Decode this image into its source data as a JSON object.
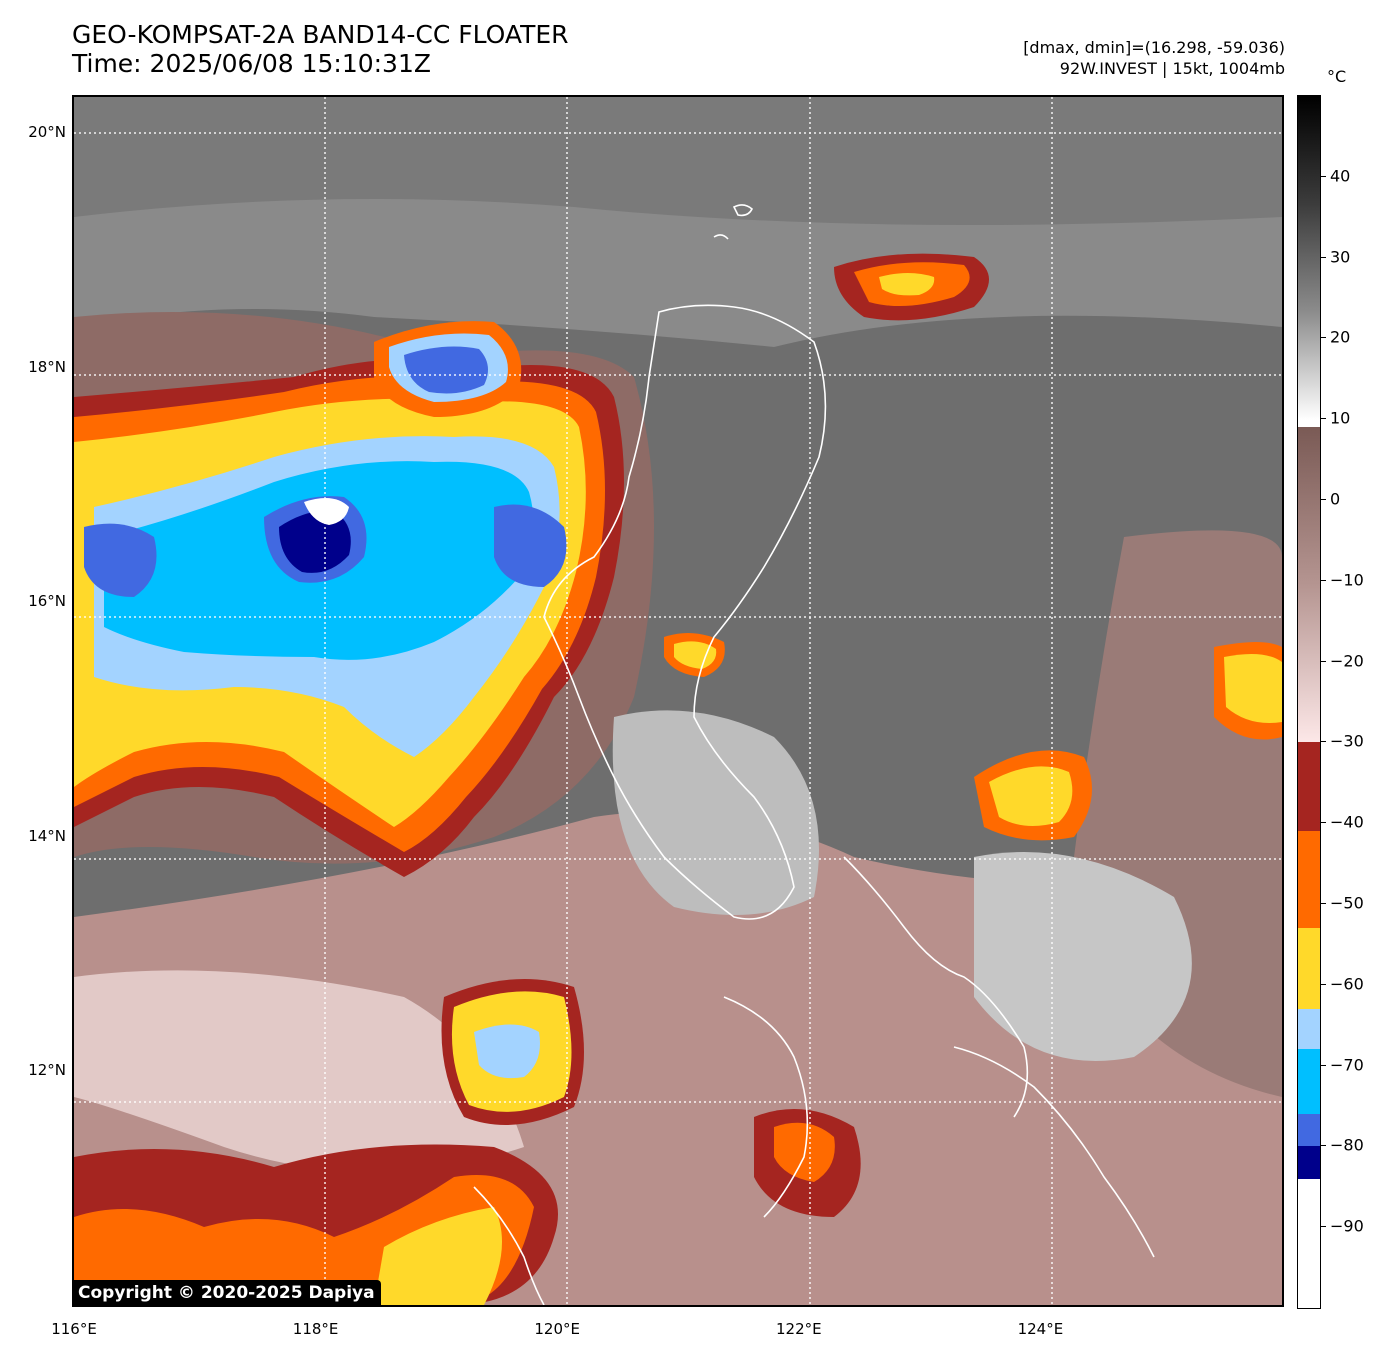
{
  "header": {
    "title_line1": "GEO-KOMPSAT-2A BAND14-CC FLOATER",
    "title_line2": "Time: 2025/06/08 15:10:31Z",
    "meta_line1": "[dmax, dmin]=(16.298, -59.036)",
    "meta_line2": "92W.INVEST | 15kt, 1004mb"
  },
  "map": {
    "lon_range": [
      116.0,
      126.0
    ],
    "lat_range": [
      10.0,
      20.3
    ],
    "lat_labels": [
      "20°N",
      "18°N",
      "16°N",
      "14°N",
      "12°N"
    ],
    "lat_values": [
      20,
      18,
      16,
      14,
      12
    ],
    "lon_labels": [
      "116°E",
      "118°E",
      "120°E",
      "122°E",
      "124°E"
    ],
    "lon_values": [
      116,
      118,
      120,
      122,
      124
    ],
    "grid": "dotted white"
  },
  "colorbar": {
    "unit": "°C",
    "tick_labels": [
      "40",
      "30",
      "20",
      "10",
      "0",
      "−10",
      "−20",
      "−30",
      "−40",
      "−50",
      "−60",
      "−70",
      "−80",
      "−90"
    ],
    "tick_values": [
      40,
      30,
      20,
      10,
      0,
      -10,
      -20,
      -30,
      -40,
      -50,
      -60,
      -70,
      -80,
      -90
    ],
    "range": [
      -100,
      50
    ],
    "bands": [
      {
        "from": 50,
        "to": 10,
        "gradient": [
          "#000000",
          "#3c3c3c",
          "#8c8c8c",
          "#ffffff"
        ]
      },
      {
        "from": 9,
        "to": -30,
        "gradient": [
          "#7a5a55",
          "#b59591",
          "#fde8e8"
        ]
      },
      {
        "from": -30,
        "to": -41,
        "color": "#a52520"
      },
      {
        "from": -41,
        "to": -53,
        "color": "#ff6a00"
      },
      {
        "from": -53,
        "to": -63,
        "color": "#ffd92a"
      },
      {
        "from": -63,
        "to": -68,
        "color": "#a3d3ff"
      },
      {
        "from": -68,
        "to": -76,
        "color": "#00bfff"
      },
      {
        "from": -76,
        "to": -80,
        "color": "#4169e1"
      },
      {
        "from": -80,
        "to": -84,
        "color": "#00008b"
      },
      {
        "from": -84,
        "to": -100,
        "color": "#ffffff"
      }
    ]
  },
  "copyright": "Copyright © 2020-2025 Dapiya"
}
